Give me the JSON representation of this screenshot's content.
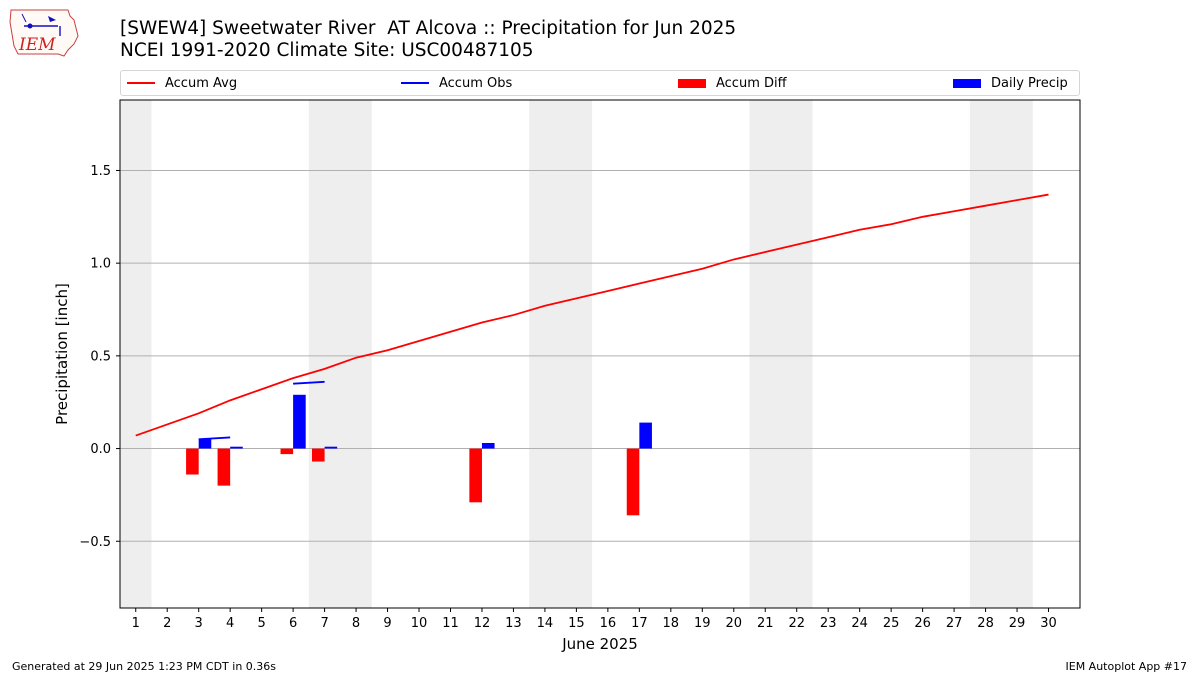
{
  "header": {
    "title_line1": "[SWEW4] Sweetwater River  AT Alcova :: Precipitation for Jun 2025",
    "title_line2": "NCEI 1991-2020 Climate Site: USC00487105",
    "logo_text": "IEM"
  },
  "legend": {
    "placement": "top",
    "items": [
      {
        "label": "Accum Avg",
        "kind": "line",
        "color": "#ff0000"
      },
      {
        "label": "Accum Obs",
        "kind": "line",
        "color": "#0000ff"
      },
      {
        "label": "Accum Diff",
        "kind": "patch",
        "color": "#ff0000"
      },
      {
        "label": "Daily Precip",
        "kind": "patch",
        "color": "#0000ff"
      }
    ]
  },
  "footer": {
    "left": "Generated at 29 Jun 2025 1:23 PM CDT in 0.36s",
    "right": "IEM Autoplot App #17"
  },
  "chart_data": {
    "type": "bar",
    "title": "[SWEW4] Sweetwater River  AT Alcova :: Precipitation for Jun 2025",
    "subtitle": "NCEI 1991-2020 Climate Site: USC00487105",
    "xlabel": "June 2025",
    "ylabel": "Precipitation [inch]",
    "xlim": [
      0.5,
      31.0
    ],
    "ylim": [
      -0.86,
      1.88
    ],
    "yticks": [
      -0.5,
      0.0,
      0.5,
      1.0,
      1.5
    ],
    "ytick_labels": [
      "−0.5",
      "0.0",
      "0.5",
      "1.0",
      "1.5"
    ],
    "x": [
      1,
      2,
      3,
      4,
      5,
      6,
      7,
      8,
      9,
      10,
      11,
      12,
      13,
      14,
      15,
      16,
      17,
      18,
      19,
      20,
      21,
      22,
      23,
      24,
      25,
      26,
      27,
      28,
      29,
      30
    ],
    "grid": true,
    "weekend_shading": [
      [
        0.5,
        1.5
      ],
      [
        6.5,
        8.5
      ],
      [
        13.5,
        15.5
      ],
      [
        20.5,
        22.5
      ],
      [
        27.5,
        29.5
      ]
    ],
    "series": [
      {
        "name": "Accum Avg",
        "kind": "line",
        "color": "#ff0000",
        "values": [
          0.07,
          0.13,
          0.19,
          0.26,
          0.32,
          0.38,
          0.43,
          0.49,
          0.53,
          0.58,
          0.63,
          0.68,
          0.72,
          0.77,
          0.81,
          0.85,
          0.89,
          0.93,
          0.97,
          1.02,
          1.06,
          1.1,
          1.14,
          1.18,
          1.21,
          1.25,
          1.28,
          1.31,
          1.34,
          1.37
        ]
      },
      {
        "name": "Accum Obs",
        "kind": "segments",
        "color": "#0000ff",
        "segments": [
          {
            "x": [
              3,
              4
            ],
            "y": [
              0.05,
              0.06
            ]
          },
          {
            "x": [
              6,
              7
            ],
            "y": [
              0.35,
              0.36
            ]
          }
        ]
      },
      {
        "name": "Accum Diff",
        "kind": "bar",
        "color": "#ff0000",
        "offset": -0.2,
        "points": [
          {
            "x": 3,
            "y": -0.14
          },
          {
            "x": 4,
            "y": -0.2
          },
          {
            "x": 6,
            "y": -0.03
          },
          {
            "x": 7,
            "y": -0.07
          },
          {
            "x": 12,
            "y": -0.29
          },
          {
            "x": 17,
            "y": -0.36
          }
        ]
      },
      {
        "name": "Daily Precip",
        "kind": "bar",
        "color": "#0000ff",
        "offset": 0.2,
        "points": [
          {
            "x": 3,
            "y": 0.05
          },
          {
            "x": 4,
            "y": 0.01
          },
          {
            "x": 6,
            "y": 0.29
          },
          {
            "x": 7,
            "y": 0.01
          },
          {
            "x": 12,
            "y": 0.03
          },
          {
            "x": 17,
            "y": 0.14
          }
        ]
      }
    ]
  }
}
